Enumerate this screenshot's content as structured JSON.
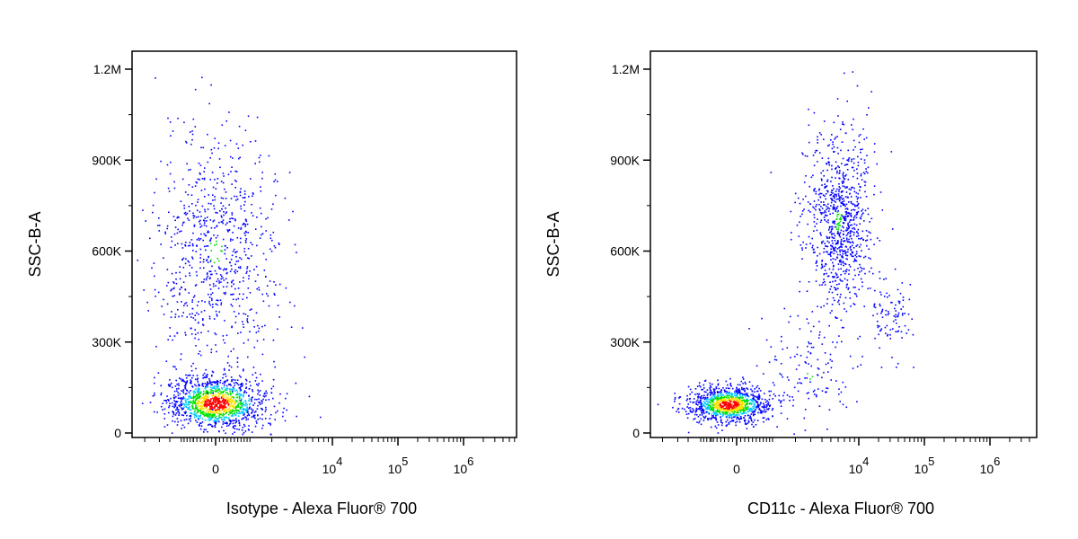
{
  "chart_data": [
    {
      "type": "scatter",
      "title": "",
      "xlabel": "Isotype - Alexa Fluor® 700",
      "ylabel": "SSC-B-A",
      "xscale": "biexponential",
      "ylim": [
        0,
        1200000
      ],
      "yticks": [
        {
          "value": 0,
          "label": "0"
        },
        {
          "value": 300000,
          "label": "300K"
        },
        {
          "value": 600000,
          "label": "600K"
        },
        {
          "value": 900000,
          "label": "900K"
        },
        {
          "value": 1200000,
          "label": "1.2M"
        }
      ],
      "xticks": [
        {
          "value": 0,
          "base": "0",
          "exp": ""
        },
        {
          "value": 10000,
          "base": "10",
          "exp": "4"
        },
        {
          "value": 100000,
          "base": "10",
          "exp": "5"
        },
        {
          "value": 1000000,
          "base": "10",
          "exp": "6"
        }
      ],
      "grid": false,
      "density_colors": [
        "#0000ff",
        "#00c8ff",
        "#00e000",
        "#ffe000",
        "#ff0000"
      ],
      "populations": [
        {
          "name": "",
          "x_center": 0,
          "x_spread": 700,
          "y_center": 100000,
          "y_spread": 45000,
          "count": 1300
        },
        {
          "name": "",
          "x_center": 0,
          "x_spread": 900,
          "y_center": 600000,
          "y_spread": 200000,
          "count": 800
        }
      ]
    },
    {
      "type": "scatter",
      "title": "",
      "xlabel": "CD11c - Alexa Fluor® 700",
      "ylabel": "SSC-B-A",
      "xscale": "biexponential",
      "ylim": [
        0,
        1200000
      ],
      "yticks": [
        {
          "value": 0,
          "label": "0"
        },
        {
          "value": 300000,
          "label": "300K"
        },
        {
          "value": 600000,
          "label": "600K"
        },
        {
          "value": 900000,
          "label": "900K"
        },
        {
          "value": 1200000,
          "label": "1.2M"
        }
      ],
      "xticks": [
        {
          "value": 0,
          "base": "0",
          "exp": ""
        },
        {
          "value": 10000,
          "base": "10",
          "exp": "4"
        },
        {
          "value": 100000,
          "base": "10",
          "exp": "5"
        },
        {
          "value": 1000000,
          "base": "10",
          "exp": "6"
        }
      ],
      "grid": false,
      "density_colors": [
        "#0000ff",
        "#00c8ff",
        "#00e000",
        "#ffe000",
        "#ff0000"
      ],
      "populations": [
        {
          "name": "",
          "x_center": -200,
          "x_spread": 500,
          "y_center": 95000,
          "y_spread": 30000,
          "count": 1100
        },
        {
          "name": "",
          "x_center": 6000,
          "x_spread": 3000,
          "y_center": 700000,
          "y_spread": 150000,
          "count": 900
        },
        {
          "name": "",
          "x_center": 30000,
          "x_spread": 12000,
          "y_center": 380000,
          "y_spread": 60000,
          "count": 90
        },
        {
          "name": "",
          "x_center": 3000,
          "x_spread": 3000,
          "y_center": 200000,
          "y_spread": 90000,
          "count": 140
        }
      ]
    }
  ]
}
